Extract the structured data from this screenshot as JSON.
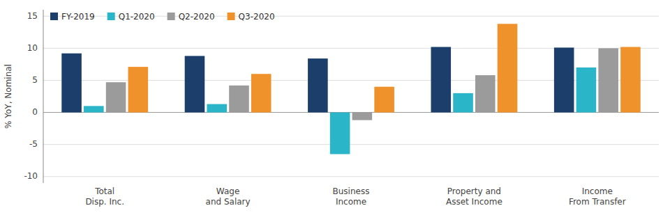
{
  "chart_data": {
    "type": "bar",
    "categories": [
      "Total\nDisp. Inc.",
      "Wage\nand Salary",
      "Business\nIncome",
      "Property and\nAsset Income",
      "Income\nFrom Transfer"
    ],
    "series": [
      {
        "name": "FY-2019",
        "color": "#1b3f6a",
        "values": [
          9.2,
          8.8,
          8.4,
          10.2,
          10.1
        ]
      },
      {
        "name": "Q1-2020",
        "color": "#2ab5c8",
        "values": [
          1.0,
          1.3,
          -6.5,
          3.0,
          7.0
        ]
      },
      {
        "name": "Q2-2020",
        "color": "#9b9b9b",
        "values": [
          4.7,
          4.2,
          -1.2,
          5.8,
          10.0
        ]
      },
      {
        "name": "Q3-2020",
        "color": "#f0922b",
        "values": [
          7.1,
          6.0,
          4.0,
          13.8,
          10.2
        ]
      }
    ],
    "ylabel": "% YoY, Nominal",
    "ylim": [
      -11,
      16
    ],
    "yticks": [
      -10,
      -5,
      0,
      5,
      10,
      15
    ],
    "grid": true,
    "legend": "upper left"
  }
}
